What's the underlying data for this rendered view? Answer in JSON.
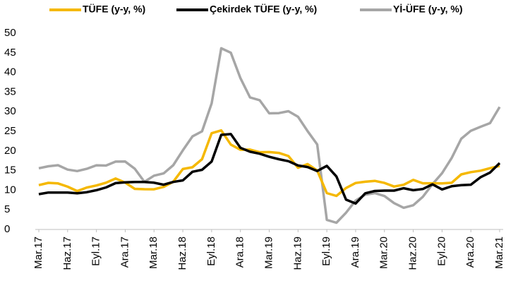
{
  "chart_data": {
    "type": "line",
    "categories": [
      "Mar.17",
      null,
      null,
      "Haz.17",
      null,
      null,
      "Eyl.17",
      null,
      null,
      "Ara.17",
      null,
      null,
      "Mar.18",
      null,
      null,
      "Haz.18",
      null,
      null,
      "Eyl.18",
      null,
      null,
      "Ara.18",
      null,
      null,
      "Mar.19",
      null,
      null,
      "Haz.19",
      null,
      null,
      "Eyl.19",
      null,
      null,
      "Ara.19",
      null,
      null,
      "Mar.20",
      null,
      null,
      "Haz.20",
      null,
      null,
      "Eyl.20",
      null,
      null,
      "Ara.20",
      null,
      null,
      "Mar.21"
    ],
    "series": [
      {
        "name": "TÜFE (y-y, %)",
        "color": "#f5b800",
        "values": [
          11.29,
          11.87,
          11.72,
          10.9,
          9.79,
          10.68,
          11.2,
          11.9,
          12.98,
          11.92,
          10.35,
          10.26,
          10.23,
          10.85,
          12.15,
          15.39,
          15.85,
          17.9,
          24.52,
          25.24,
          21.62,
          20.3,
          20.35,
          19.67,
          19.71,
          19.5,
          18.71,
          15.72,
          16.65,
          15.01,
          9.26,
          8.55,
          10.56,
          11.84,
          12.15,
          12.37,
          11.86,
          10.94,
          11.39,
          12.62,
          11.76,
          11.77,
          11.75,
          11.89,
          14.03,
          14.6,
          14.97,
          15.61,
          16.19
        ]
      },
      {
        "name": "Çekirdek TÜFE (y-y, %)",
        "color": "#000000",
        "values": [
          9.0,
          9.4,
          9.4,
          9.4,
          9.2,
          9.5,
          10.0,
          10.7,
          11.8,
          12.0,
          12.1,
          12.1,
          11.9,
          11.4,
          12.1,
          12.5,
          14.7,
          15.2,
          17.3,
          24.1,
          24.3,
          20.8,
          19.8,
          19.3,
          18.5,
          17.9,
          17.4,
          16.3,
          15.9,
          14.9,
          16.2,
          13.5,
          7.6,
          6.6,
          9.2,
          9.8,
          9.9,
          9.9,
          10.5,
          10.0,
          10.3,
          11.5,
          10.2,
          11.0,
          11.3,
          11.4,
          13.3,
          14.5,
          16.9
        ]
      },
      {
        "name": "Yİ-ÜFE (y-y, %)",
        "color": "#a6a6a6",
        "values": [
          15.6,
          16.09,
          16.37,
          15.26,
          14.87,
          15.45,
          16.34,
          16.28,
          17.28,
          17.3,
          15.47,
          12.14,
          13.71,
          14.28,
          16.37,
          20.16,
          23.71,
          25.0,
          32.13,
          46.15,
          45.01,
          38.54,
          33.64,
          32.93,
          29.59,
          29.64,
          30.12,
          28.71,
          25.04,
          21.66,
          2.45,
          1.7,
          4.26,
          7.36,
          8.84,
          9.26,
          8.5,
          6.71,
          5.53,
          6.17,
          8.33,
          11.53,
          14.33,
          18.2,
          23.11,
          25.15,
          26.16,
          27.09,
          31.2
        ]
      }
    ],
    "ylim": [
      0,
      50
    ],
    "yticks": [
      0,
      5,
      10,
      15,
      20,
      25,
      30,
      35,
      40,
      45,
      50
    ],
    "grid": false,
    "legend": "top"
  }
}
